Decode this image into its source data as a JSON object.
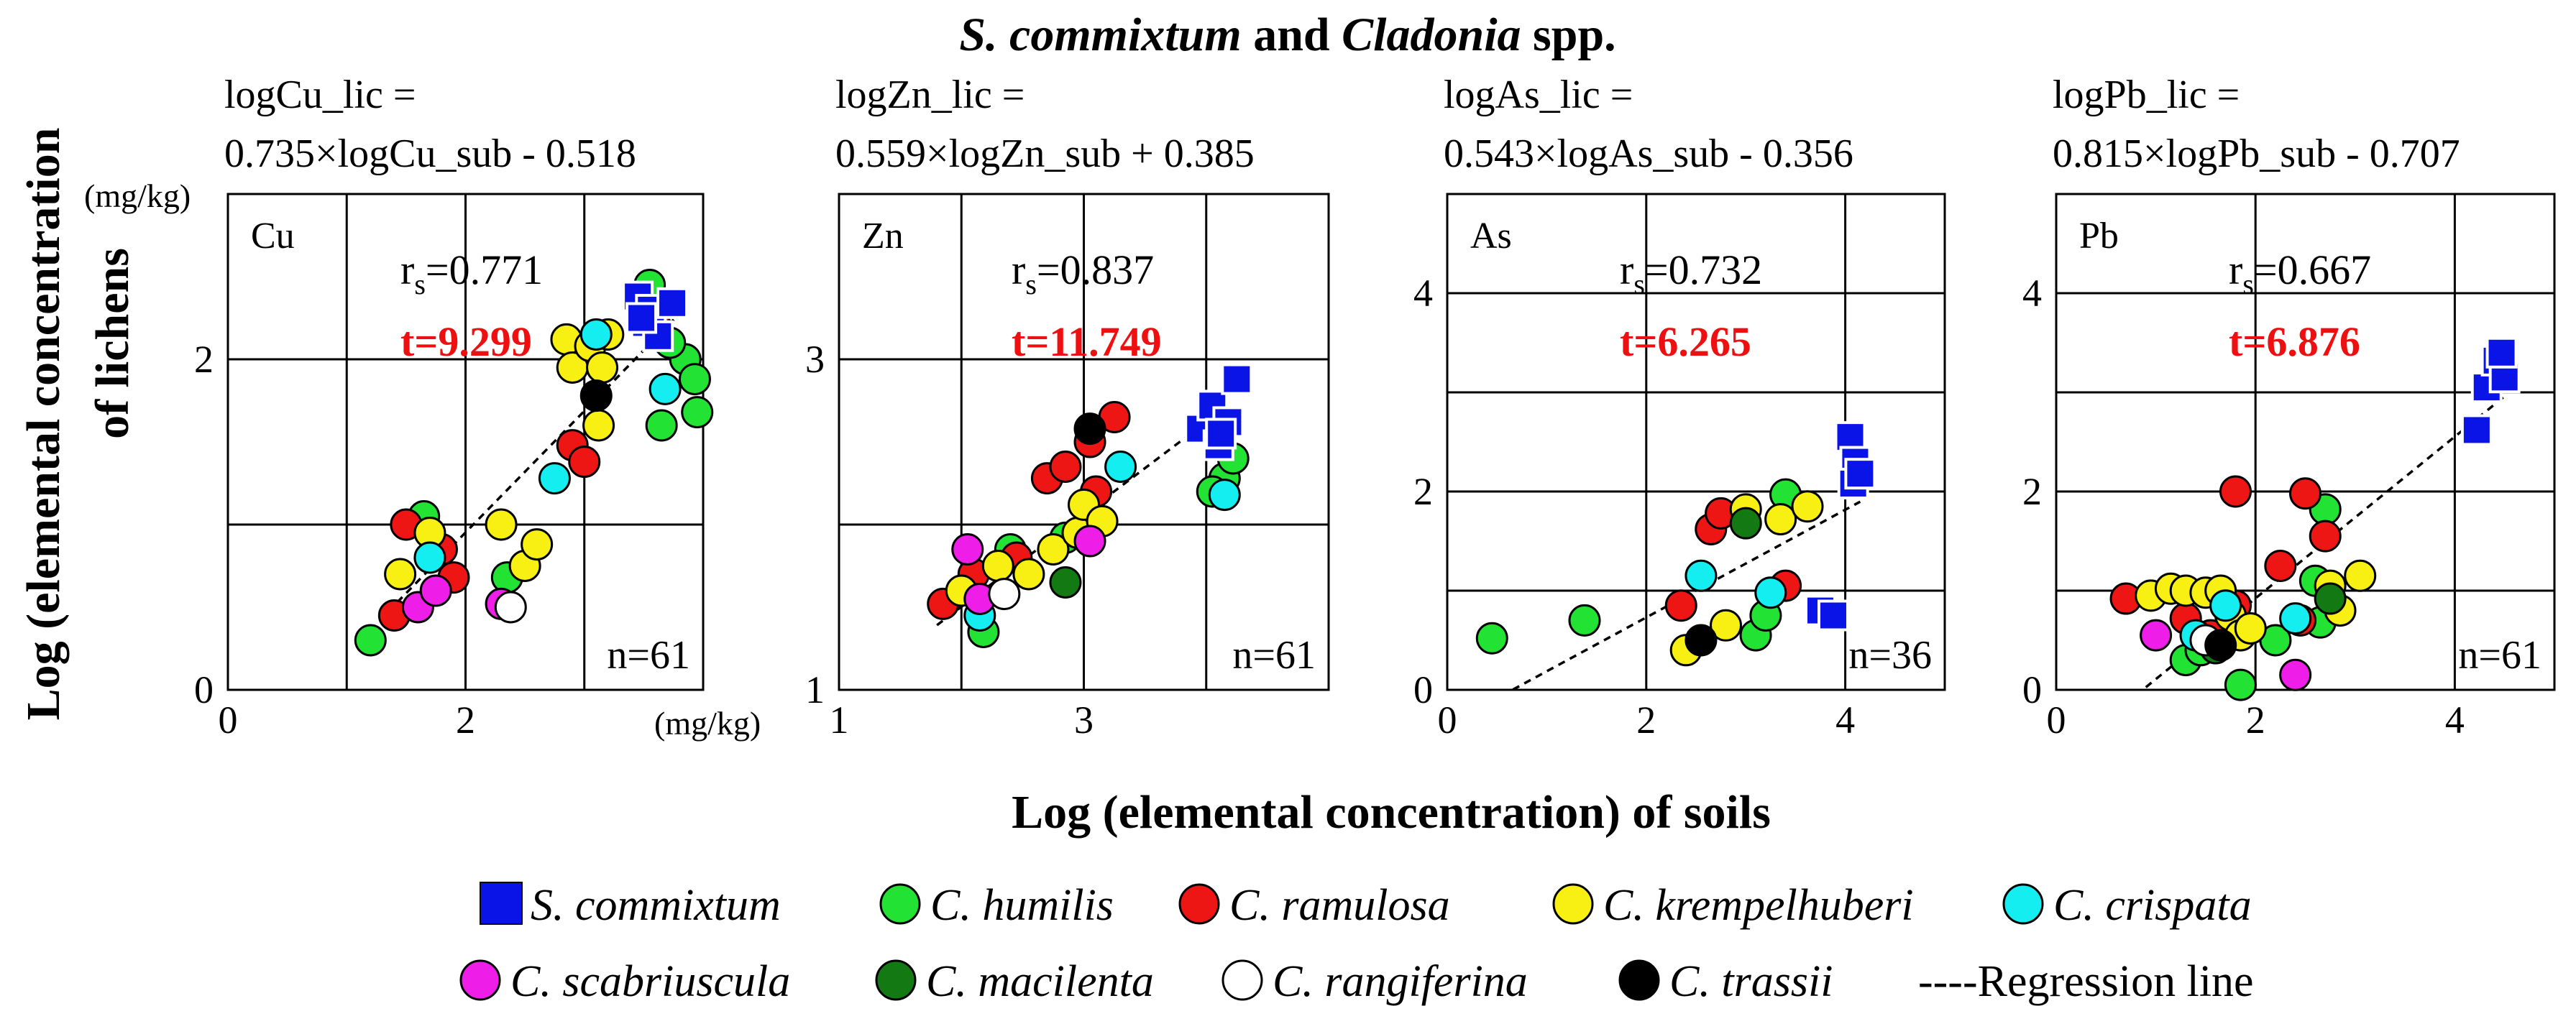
{
  "figure": {
    "title_italic": "S. commixtum",
    "title_mid": " and ",
    "title_italic2": "Cladonia",
    "title_end": " spp.",
    "ylabel_line1": "Log (elemental concentration",
    "ylabel_line2": "of lichens",
    "xlabel": "Log (elemental concentration) of soils",
    "unit_y": "(mg/kg)",
    "unit_x": "(mg/kg)"
  },
  "legend": {
    "items": [
      {
        "label": "S. commixtum",
        "color": "#0b14e6",
        "shape": "square"
      },
      {
        "label": "C. humilis",
        "color": "#22e234",
        "shape": "circle"
      },
      {
        "label": "C. ramulosa",
        "color": "#ee1515",
        "shape": "circle"
      },
      {
        "label": "C. krempelhuberi",
        "color": "#f8f012",
        "shape": "circle"
      },
      {
        "label": "C. crispata",
        "color": "#15eef0",
        "shape": "circle"
      },
      {
        "label": "C. scabriuscula",
        "color": "#ee1ee8",
        "shape": "circle"
      },
      {
        "label": "C. macilenta",
        "color": "#137a13",
        "shape": "circle"
      },
      {
        "label": "C. rangiferina",
        "color": "#ffffff",
        "shape": "circle"
      },
      {
        "label": "C. trassii",
        "color": "#000000",
        "shape": "circle"
      }
    ],
    "regression_label": "----Regression line"
  },
  "chart_data": [
    {
      "type": "scatter",
      "element": "Cu",
      "eq_line1": "logCu_lic =",
      "eq_line2": "0.735×logCu_sub - 0.518",
      "rs_r": "r",
      "rs_sub": "s",
      "rs_val": "=0.771",
      "t": "t=9.299",
      "n": "n=61",
      "xlim": [
        0,
        4
      ],
      "ylim": [
        0,
        3
      ],
      "xgrid": [
        0,
        1,
        2,
        3,
        4
      ],
      "ygrid": [
        0,
        1,
        2,
        3
      ],
      "xticks": [
        {
          "v": 0,
          "label": "0"
        },
        {
          "v": 2,
          "label": "2"
        }
      ],
      "yticks": [
        {
          "v": 0,
          "label": "0"
        },
        {
          "v": 2,
          "label": "2"
        }
      ],
      "regression": {
        "slope": 0.735,
        "intercept": -0.518,
        "x_range": [
          1.35,
          3.85
        ]
      },
      "points": [
        {
          "sp": 0,
          "x": 3.45,
          "y": 2.38
        },
        {
          "sp": 0,
          "x": 3.52,
          "y": 2.22
        },
        {
          "sp": 0,
          "x": 3.56,
          "y": 2.3
        },
        {
          "sp": 0,
          "x": 3.62,
          "y": 2.14
        },
        {
          "sp": 0,
          "x": 3.74,
          "y": 2.34
        },
        {
          "sp": 0,
          "x": 3.48,
          "y": 2.25
        },
        {
          "sp": 1,
          "x": 1.2,
          "y": 0.3
        },
        {
          "sp": 1,
          "x": 1.65,
          "y": 1.05
        },
        {
          "sp": 1,
          "x": 3.55,
          "y": 2.45
        },
        {
          "sp": 1,
          "x": 3.85,
          "y": 2.0
        },
        {
          "sp": 1,
          "x": 3.93,
          "y": 1.88
        },
        {
          "sp": 1,
          "x": 3.95,
          "y": 1.68
        },
        {
          "sp": 1,
          "x": 3.65,
          "y": 1.6
        },
        {
          "sp": 1,
          "x": 3.72,
          "y": 2.1
        },
        {
          "sp": 1,
          "x": 2.35,
          "y": 0.68
        },
        {
          "sp": 2,
          "x": 1.4,
          "y": 0.45
        },
        {
          "sp": 2,
          "x": 1.5,
          "y": 1.0
        },
        {
          "sp": 2,
          "x": 1.8,
          "y": 0.85
        },
        {
          "sp": 2,
          "x": 1.9,
          "y": 0.68
        },
        {
          "sp": 2,
          "x": 2.9,
          "y": 1.48
        },
        {
          "sp": 2,
          "x": 3.0,
          "y": 1.38
        },
        {
          "sp": 2,
          "x": 3.6,
          "y": 2.2
        },
        {
          "sp": 3,
          "x": 1.45,
          "y": 0.7
        },
        {
          "sp": 3,
          "x": 1.7,
          "y": 0.95
        },
        {
          "sp": 3,
          "x": 2.3,
          "y": 1.0
        },
        {
          "sp": 3,
          "x": 2.5,
          "y": 0.75
        },
        {
          "sp": 3,
          "x": 2.6,
          "y": 0.88
        },
        {
          "sp": 3,
          "x": 2.85,
          "y": 2.12
        },
        {
          "sp": 3,
          "x": 2.9,
          "y": 1.95
        },
        {
          "sp": 3,
          "x": 3.05,
          "y": 2.08
        },
        {
          "sp": 3,
          "x": 3.15,
          "y": 1.95
        },
        {
          "sp": 3,
          "x": 3.12,
          "y": 1.6
        },
        {
          "sp": 3,
          "x": 3.2,
          "y": 2.15
        },
        {
          "sp": 4,
          "x": 1.7,
          "y": 0.8
        },
        {
          "sp": 4,
          "x": 2.75,
          "y": 1.28
        },
        {
          "sp": 4,
          "x": 3.1,
          "y": 2.15
        },
        {
          "sp": 4,
          "x": 3.68,
          "y": 1.82
        },
        {
          "sp": 5,
          "x": 1.6,
          "y": 0.5
        },
        {
          "sp": 5,
          "x": 1.75,
          "y": 0.6
        },
        {
          "sp": 5,
          "x": 2.3,
          "y": 0.52
        },
        {
          "sp": 7,
          "x": 2.38,
          "y": 0.5
        },
        {
          "sp": 8,
          "x": 3.1,
          "y": 1.78
        }
      ]
    },
    {
      "type": "scatter",
      "element": "Zn",
      "eq_line1": "logZn_lic =",
      "eq_line2": "0.559×logZn_sub + 0.385",
      "rs_r": "r",
      "rs_sub": "s",
      "rs_val": "=0.837",
      "t": "t=11.749",
      "n": "n=61",
      "xlim": [
        1,
        5
      ],
      "ylim": [
        1,
        4
      ],
      "xgrid": [
        1,
        2,
        3,
        4,
        5
      ],
      "ygrid": [
        1,
        2,
        3,
        4
      ],
      "xticks": [
        {
          "v": 1,
          "label": "1"
        },
        {
          "v": 3,
          "label": "3"
        }
      ],
      "yticks": [
        {
          "v": 1,
          "label": "1"
        },
        {
          "v": 3,
          "label": "3"
        }
      ],
      "regression": {
        "slope": 0.559,
        "intercept": 0.385,
        "x_range": [
          1.8,
          4.15
        ]
      },
      "points": [
        {
          "sp": 0,
          "x": 3.95,
          "y": 2.58
        },
        {
          "sp": 0,
          "x": 4.05,
          "y": 2.72
        },
        {
          "sp": 0,
          "x": 4.1,
          "y": 2.48
        },
        {
          "sp": 0,
          "x": 4.18,
          "y": 2.62
        },
        {
          "sp": 0,
          "x": 4.25,
          "y": 2.88
        },
        {
          "sp": 0,
          "x": 4.12,
          "y": 2.55
        },
        {
          "sp": 1,
          "x": 2.18,
          "y": 1.35
        },
        {
          "sp": 1,
          "x": 2.4,
          "y": 1.85
        },
        {
          "sp": 1,
          "x": 2.85,
          "y": 1.92
        },
        {
          "sp": 1,
          "x": 4.15,
          "y": 2.28
        },
        {
          "sp": 1,
          "x": 4.22,
          "y": 2.4
        },
        {
          "sp": 1,
          "x": 4.05,
          "y": 2.2
        },
        {
          "sp": 2,
          "x": 1.85,
          "y": 1.52
        },
        {
          "sp": 2,
          "x": 2.1,
          "y": 1.7
        },
        {
          "sp": 2,
          "x": 2.45,
          "y": 1.8
        },
        {
          "sp": 2,
          "x": 2.7,
          "y": 2.28
        },
        {
          "sp": 2,
          "x": 2.85,
          "y": 2.35
        },
        {
          "sp": 2,
          "x": 3.05,
          "y": 2.5
        },
        {
          "sp": 2,
          "x": 3.25,
          "y": 2.65
        },
        {
          "sp": 2,
          "x": 3.1,
          "y": 2.2
        },
        {
          "sp": 3,
          "x": 2.0,
          "y": 1.6
        },
        {
          "sp": 3,
          "x": 2.3,
          "y": 1.75
        },
        {
          "sp": 3,
          "x": 2.55,
          "y": 1.7
        },
        {
          "sp": 3,
          "x": 2.75,
          "y": 1.85
        },
        {
          "sp": 3,
          "x": 2.95,
          "y": 1.95
        },
        {
          "sp": 3,
          "x": 3.0,
          "y": 2.12
        },
        {
          "sp": 3,
          "x": 3.15,
          "y": 2.02
        },
        {
          "sp": 4,
          "x": 2.15,
          "y": 1.45
        },
        {
          "sp": 4,
          "x": 4.15,
          "y": 2.18
        },
        {
          "sp": 4,
          "x": 3.3,
          "y": 2.35
        },
        {
          "sp": 5,
          "x": 2.05,
          "y": 1.85
        },
        {
          "sp": 5,
          "x": 2.15,
          "y": 1.55
        },
        {
          "sp": 5,
          "x": 3.05,
          "y": 1.9
        },
        {
          "sp": 6,
          "x": 2.85,
          "y": 1.65
        },
        {
          "sp": 7,
          "x": 2.35,
          "y": 1.58
        },
        {
          "sp": 8,
          "x": 3.05,
          "y": 2.58
        }
      ]
    },
    {
      "type": "scatter",
      "element": "As",
      "eq_line1": "logAs_lic =",
      "eq_line2": "0.543×logAs_sub - 0.356",
      "rs_r": "r",
      "rs_sub": "s",
      "rs_val": "=0.732",
      "t": "t=6.265",
      "n": "n=36",
      "xlim": [
        0,
        5
      ],
      "ylim": [
        0,
        5
      ],
      "xgrid": [
        0,
        2,
        4,
        5
      ],
      "ygrid": [
        0,
        1,
        2,
        3,
        4,
        5
      ],
      "xticks": [
        {
          "v": 0,
          "label": "0"
        },
        {
          "v": 2,
          "label": "2"
        },
        {
          "v": 4,
          "label": "4"
        }
      ],
      "yticks": [
        {
          "v": 0,
          "label": "0"
        },
        {
          "v": 2,
          "label": "2"
        },
        {
          "v": 4,
          "label": "4"
        }
      ],
      "regression": {
        "slope": 0.543,
        "intercept": -0.356,
        "x_range": [
          0.66,
          4.15
        ]
      },
      "points": [
        {
          "sp": 0,
          "x": 4.05,
          "y": 2.55
        },
        {
          "sp": 0,
          "x": 4.1,
          "y": 2.3
        },
        {
          "sp": 0,
          "x": 4.08,
          "y": 2.08
        },
        {
          "sp": 0,
          "x": 4.15,
          "y": 2.18
        },
        {
          "sp": 0,
          "x": 3.75,
          "y": 0.8
        },
        {
          "sp": 0,
          "x": 3.88,
          "y": 0.75
        },
        {
          "sp": 1,
          "x": 0.45,
          "y": 0.52
        },
        {
          "sp": 1,
          "x": 1.38,
          "y": 0.7
        },
        {
          "sp": 1,
          "x": 3.4,
          "y": 1.97
        },
        {
          "sp": 1,
          "x": 3.1,
          "y": 0.55
        },
        {
          "sp": 1,
          "x": 3.2,
          "y": 0.75
        },
        {
          "sp": 2,
          "x": 2.35,
          "y": 0.85
        },
        {
          "sp": 2,
          "x": 2.65,
          "y": 1.62
        },
        {
          "sp": 2,
          "x": 2.75,
          "y": 1.78
        },
        {
          "sp": 2,
          "x": 3.4,
          "y": 1.05
        },
        {
          "sp": 3,
          "x": 2.4,
          "y": 0.4
        },
        {
          "sp": 3,
          "x": 2.8,
          "y": 0.65
        },
        {
          "sp": 3,
          "x": 3.0,
          "y": 1.82
        },
        {
          "sp": 3,
          "x": 3.35,
          "y": 1.72
        },
        {
          "sp": 3,
          "x": 3.62,
          "y": 1.85
        },
        {
          "sp": 4,
          "x": 2.55,
          "y": 1.15
        },
        {
          "sp": 4,
          "x": 3.25,
          "y": 0.98
        },
        {
          "sp": 6,
          "x": 3.0,
          "y": 1.68
        },
        {
          "sp": 8,
          "x": 2.55,
          "y": 0.5
        }
      ]
    },
    {
      "type": "scatter",
      "element": "Pb",
      "eq_line1": "logPb_lic =",
      "eq_line2": "0.815×logPb_sub - 0.707",
      "rs_r": "r",
      "rs_sub": "s",
      "rs_val": "=0.667",
      "t": "t=6.876",
      "n": "n=61",
      "xlim": [
        0,
        5
      ],
      "ylim": [
        0,
        5
      ],
      "xgrid": [
        0,
        2,
        4,
        5
      ],
      "ygrid": [
        0,
        1,
        2,
        3,
        4,
        5
      ],
      "xticks": [
        {
          "v": 0,
          "label": "0"
        },
        {
          "v": 2,
          "label": "2"
        },
        {
          "v": 4,
          "label": "4"
        }
      ],
      "yticks": [
        {
          "v": 0,
          "label": "0"
        },
        {
          "v": 2,
          "label": "2"
        },
        {
          "v": 4,
          "label": "4"
        }
      ],
      "regression": {
        "slope": 0.815,
        "intercept": -0.707,
        "x_range": [
          0.9,
          4.5
        ]
      },
      "points": [
        {
          "sp": 0,
          "x": 4.22,
          "y": 2.62
        },
        {
          "sp": 0,
          "x": 4.32,
          "y": 3.05
        },
        {
          "sp": 0,
          "x": 4.42,
          "y": 3.32
        },
        {
          "sp": 0,
          "x": 4.5,
          "y": 3.15
        },
        {
          "sp": 0,
          "x": 4.47,
          "y": 3.4
        },
        {
          "sp": 1,
          "x": 1.3,
          "y": 0.3
        },
        {
          "sp": 1,
          "x": 1.45,
          "y": 0.4
        },
        {
          "sp": 1,
          "x": 1.85,
          "y": 0.05
        },
        {
          "sp": 1,
          "x": 2.6,
          "y": 1.1
        },
        {
          "sp": 1,
          "x": 2.7,
          "y": 1.82
        },
        {
          "sp": 1,
          "x": 2.65,
          "y": 0.68
        },
        {
          "sp": 1,
          "x": 2.2,
          "y": 0.5
        },
        {
          "sp": 2,
          "x": 0.7,
          "y": 0.92
        },
        {
          "sp": 2,
          "x": 1.3,
          "y": 0.72
        },
        {
          "sp": 2,
          "x": 1.55,
          "y": 0.55
        },
        {
          "sp": 2,
          "x": 1.8,
          "y": 0.85
        },
        {
          "sp": 2,
          "x": 1.8,
          "y": 2.0
        },
        {
          "sp": 2,
          "x": 2.25,
          "y": 1.25
        },
        {
          "sp": 2,
          "x": 2.5,
          "y": 1.98
        },
        {
          "sp": 2,
          "x": 2.7,
          "y": 1.55
        },
        {
          "sp": 2,
          "x": 2.45,
          "y": 0.7
        },
        {
          "sp": 3,
          "x": 0.95,
          "y": 0.95
        },
        {
          "sp": 3,
          "x": 1.15,
          "y": 1.02
        },
        {
          "sp": 3,
          "x": 1.3,
          "y": 1.0
        },
        {
          "sp": 3,
          "x": 1.5,
          "y": 0.98
        },
        {
          "sp": 3,
          "x": 1.65,
          "y": 1.0
        },
        {
          "sp": 3,
          "x": 1.75,
          "y": 0.75
        },
        {
          "sp": 3,
          "x": 1.85,
          "y": 0.55
        },
        {
          "sp": 3,
          "x": 1.95,
          "y": 0.62
        },
        {
          "sp": 3,
          "x": 2.85,
          "y": 0.8
        },
        {
          "sp": 3,
          "x": 3.05,
          "y": 1.15
        },
        {
          "sp": 3,
          "x": 2.75,
          "y": 1.05
        },
        {
          "sp": 4,
          "x": 1.4,
          "y": 0.55
        },
        {
          "sp": 4,
          "x": 1.7,
          "y": 0.85
        },
        {
          "sp": 4,
          "x": 2.4,
          "y": 0.72
        },
        {
          "sp": 5,
          "x": 1.0,
          "y": 0.55
        },
        {
          "sp": 5,
          "x": 2.4,
          "y": 0.15
        },
        {
          "sp": 6,
          "x": 2.75,
          "y": 0.92
        },
        {
          "sp": 6,
          "x": 1.6,
          "y": 0.42
        },
        {
          "sp": 7,
          "x": 1.5,
          "y": 0.5
        },
        {
          "sp": 8,
          "x": 1.65,
          "y": 0.45
        }
      ]
    }
  ]
}
